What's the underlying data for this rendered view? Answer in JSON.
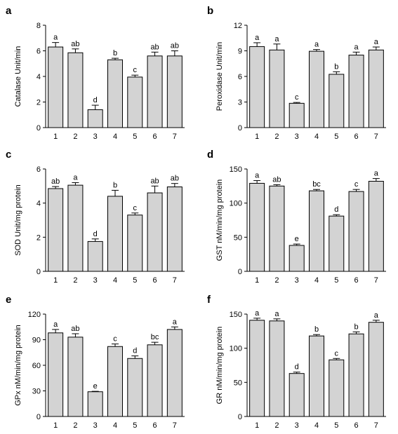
{
  "colors": {
    "bar_fill": "#d3d3d3",
    "bar_stroke": "#000000",
    "text": "#000000"
  },
  "chart_data": [
    {
      "panel": "a",
      "type": "bar",
      "categories": [
        "1",
        "2",
        "3",
        "4",
        "5",
        "6",
        "7"
      ],
      "values": [
        6.3,
        5.85,
        1.4,
        5.3,
        3.95,
        5.6,
        5.6
      ],
      "errors": [
        0.35,
        0.3,
        0.35,
        0.12,
        0.15,
        0.3,
        0.4
      ],
      "significance": [
        "a",
        "ab",
        "d",
        "b",
        "c",
        "ab",
        "ab"
      ],
      "ylabel": "Catalase Unit/min",
      "xlabel": "",
      "ylim": [
        0,
        8
      ],
      "yticks": [
        0,
        2,
        4,
        6,
        8
      ]
    },
    {
      "panel": "b",
      "type": "bar",
      "categories": [
        "1",
        "2",
        "3",
        "4",
        "5",
        "6",
        "7"
      ],
      "values": [
        9.5,
        9.1,
        2.85,
        8.95,
        6.25,
        8.5,
        9.1
      ],
      "errors": [
        0.45,
        0.7,
        0.1,
        0.2,
        0.3,
        0.35,
        0.35
      ],
      "significance": [
        "a",
        "a",
        "c",
        "a",
        "b",
        "a",
        "a"
      ],
      "ylabel": "Peroxidase Unit/min",
      "xlabel": "",
      "ylim": [
        0,
        12
      ],
      "yticks": [
        0,
        3,
        6,
        9,
        12
      ]
    },
    {
      "panel": "c",
      "type": "bar",
      "categories": [
        "1",
        "2",
        "3",
        "4",
        "5",
        "6",
        "7"
      ],
      "values": [
        4.85,
        5.05,
        1.75,
        4.4,
        3.3,
        4.6,
        4.95
      ],
      "errors": [
        0.12,
        0.15,
        0.15,
        0.35,
        0.12,
        0.4,
        0.2
      ],
      "significance": [
        "ab",
        "a",
        "d",
        "b",
        "c",
        "ab",
        "ab"
      ],
      "ylabel": "SOD Unit/mg protein",
      "xlabel": "",
      "ylim": [
        0,
        6
      ],
      "yticks": [
        0,
        2,
        4,
        6
      ]
    },
    {
      "panel": "d",
      "type": "bar",
      "categories": [
        "1",
        "2",
        "3",
        "4",
        "5",
        "6",
        "7"
      ],
      "values": [
        129,
        125,
        38,
        118,
        81,
        117,
        132
      ],
      "errors": [
        4,
        2,
        2,
        2,
        2,
        3,
        4
      ],
      "significance": [
        "a",
        "ab",
        "e",
        "bc",
        "d",
        "c",
        "a"
      ],
      "ylabel": "GST nM/min/mg protein",
      "xlabel": "",
      "ylim": [
        0,
        150
      ],
      "yticks": [
        0,
        50,
        100,
        150
      ]
    },
    {
      "panel": "e",
      "type": "bar",
      "categories": [
        "1",
        "2",
        "3",
        "4",
        "5",
        "6",
        "7"
      ],
      "values": [
        98,
        93,
        29,
        82,
        68,
        84,
        102
      ],
      "errors": [
        4,
        4,
        0.5,
        3,
        3,
        3,
        3
      ],
      "significance": [
        "a",
        "ab",
        "e",
        "c",
        "d",
        "bc",
        "a"
      ],
      "ylabel": "GPx nM/min/mg protein",
      "xlabel": "",
      "ylim": [
        0,
        120
      ],
      "yticks": [
        0,
        30,
        60,
        90,
        120
      ]
    },
    {
      "panel": "f",
      "type": "bar",
      "categories": [
        "1",
        "2",
        "3",
        "4",
        "5",
        "6",
        "7"
      ],
      "values": [
        141,
        140,
        63,
        118,
        83,
        121,
        138
      ],
      "errors": [
        3,
        3,
        2,
        2,
        2,
        3,
        3
      ],
      "significance": [
        "a",
        "a",
        "d",
        "b",
        "c",
        "b",
        "a"
      ],
      "ylabel": "GR nM/min/mg protein",
      "xlabel": "",
      "ylim": [
        0,
        150
      ],
      "yticks": [
        0,
        50,
        100,
        150
      ]
    }
  ]
}
